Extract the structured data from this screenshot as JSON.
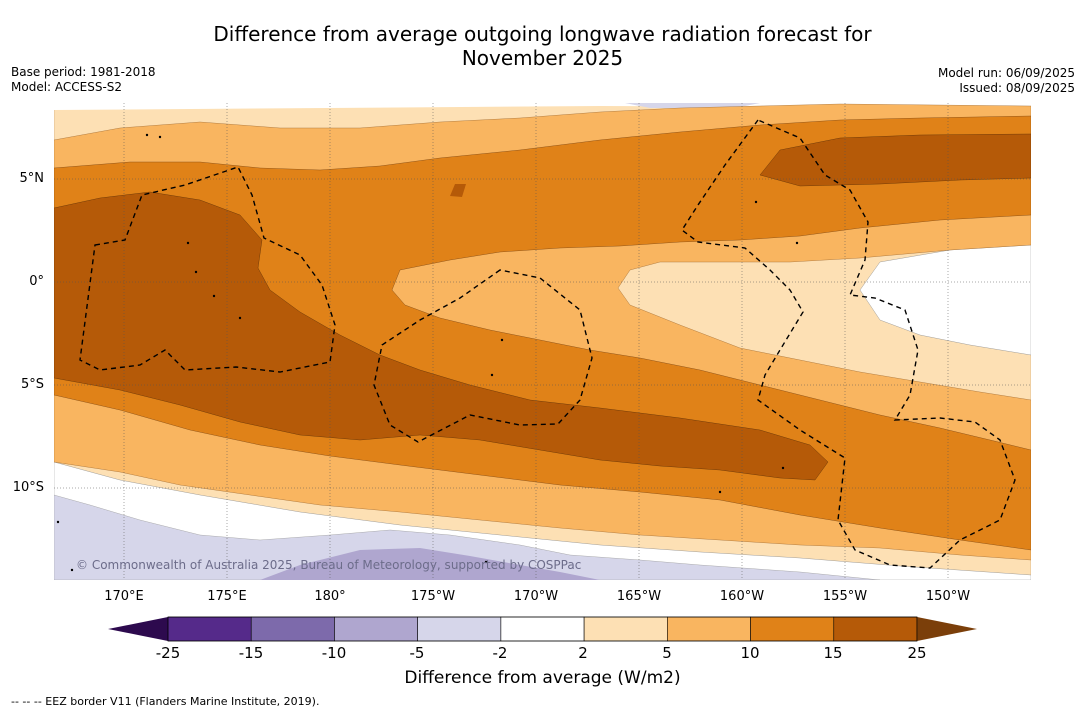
{
  "title_line1": "Difference from average outgoing longwave radiation forecast for",
  "title_line2": "November 2025",
  "meta_left": {
    "base_period": "Base period: 1981-2018",
    "model": "Model: ACCESS-S2"
  },
  "meta_right": {
    "model_run": "Model run: 06/09/2025",
    "issued": "Issued: 08/09/2025"
  },
  "lat_labels": [
    "5°N",
    "0°",
    "5°S",
    "10°S"
  ],
  "lon_labels": [
    "170°E",
    "175°E",
    "180°",
    "175°W",
    "170°W",
    "165°W",
    "160°W",
    "155°W",
    "150°W"
  ],
  "copyright": "© Commonwealth of Australia 2025, Bureau of Meteorology, supported by COSPPac",
  "colorbar": {
    "ticks": [
      "-25",
      "-15",
      "-10",
      "-5",
      "-2",
      "2",
      "5",
      "10",
      "15",
      "25"
    ],
    "colors": [
      "#552a8a",
      "#7d6aab",
      "#afa6cf",
      "#d6d6ea",
      "#ffffff",
      "#fde0b4",
      "#f9b560",
      "#e08218",
      "#b55a08"
    ],
    "under_color": "#2d0a4e",
    "over_color": "#7b3f0a",
    "label": "Difference from average (W/m2)"
  },
  "footnote": "--  --  -- EEZ border V11 (Flanders Marine Institute, 2019)."
}
